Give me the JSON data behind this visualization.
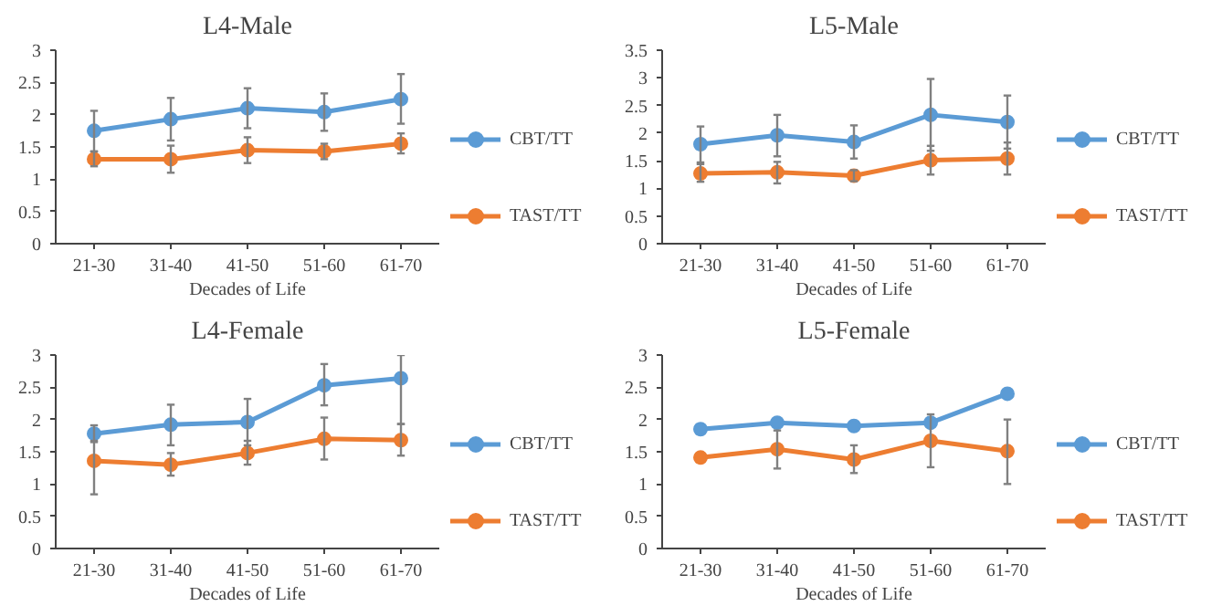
{
  "chart_data": [
    {
      "type": "line",
      "title": "L4-Male",
      "xlabel": "Decades of Life",
      "categories": [
        "21-30",
        "31-40",
        "41-50",
        "51-60",
        "61-70"
      ],
      "ylim": [
        0,
        3
      ],
      "yticks": [
        0,
        0.5,
        1,
        1.5,
        2,
        2.5,
        3
      ],
      "grid": false,
      "legend": "right",
      "marker": "circle",
      "series": [
        {
          "name": "CBT/TT",
          "color": "#5b9bd5",
          "values": [
            1.75,
            1.93,
            2.1,
            2.04,
            2.24
          ],
          "errors": [
            [
              1.43,
              2.06
            ],
            [
              1.6,
              2.26
            ],
            [
              1.79,
              2.41
            ],
            [
              1.75,
              2.33
            ],
            [
              1.86,
              2.63
            ]
          ]
        },
        {
          "name": "TAST/TT",
          "color": "#ed7d31",
          "values": [
            1.31,
            1.31,
            1.45,
            1.43,
            1.55
          ],
          "errors": [
            [
              1.2,
              1.43
            ],
            [
              1.1,
              1.52
            ],
            [
              1.25,
              1.65
            ],
            [
              1.31,
              1.55
            ],
            [
              1.4,
              1.71
            ]
          ]
        }
      ]
    },
    {
      "type": "line",
      "title": "L5-Male",
      "xlabel": "Decades of Life",
      "categories": [
        "21-30",
        "31-40",
        "41-50",
        "51-60",
        "61-70"
      ],
      "ylim": [
        0,
        3.5
      ],
      "yticks": [
        0,
        0.5,
        1,
        1.5,
        2,
        2.5,
        3,
        3.5
      ],
      "grid": false,
      "legend": "right",
      "marker": "circle",
      "series": [
        {
          "name": "CBT/TT",
          "color": "#5b9bd5",
          "values": [
            1.8,
            1.96,
            1.84,
            2.33,
            2.2
          ],
          "errors": [
            [
              1.47,
              2.12
            ],
            [
              1.58,
              2.33
            ],
            [
              1.54,
              2.14
            ],
            [
              1.68,
              2.98
            ],
            [
              1.72,
              2.68
            ]
          ]
        },
        {
          "name": "TAST/TT",
          "color": "#ed7d31",
          "values": [
            1.27,
            1.29,
            1.23,
            1.51,
            1.54
          ],
          "errors": [
            [
              1.12,
              1.44
            ],
            [
              1.09,
              1.48
            ],
            [
              1.13,
              1.33
            ],
            [
              1.25,
              1.77
            ],
            [
              1.25,
              1.83
            ]
          ]
        }
      ]
    },
    {
      "type": "line",
      "title": "L4-Female",
      "xlabel": "Decades of Life",
      "categories": [
        "21-30",
        "31-40",
        "41-50",
        "51-60",
        "61-70"
      ],
      "ylim": [
        0,
        3
      ],
      "yticks": [
        0,
        0.5,
        1,
        1.5,
        2,
        2.5,
        3
      ],
      "grid": false,
      "legend": "right",
      "marker": "circle",
      "series": [
        {
          "name": "CBT/TT",
          "color": "#5b9bd5",
          "values": [
            1.78,
            1.92,
            1.96,
            2.53,
            2.64
          ],
          "errors": [
            [
              1.65,
              1.91
            ],
            [
              1.6,
              2.23
            ],
            [
              1.6,
              2.32
            ],
            [
              2.22,
              2.86
            ],
            [
              1.93,
              3.0
            ]
          ]
        },
        {
          "name": "TAST/TT",
          "color": "#ed7d31",
          "values": [
            1.36,
            1.3,
            1.48,
            1.7,
            1.68
          ],
          "errors": [
            [
              0.84,
              1.67
            ],
            [
              1.13,
              1.48
            ],
            [
              1.3,
              1.67
            ],
            [
              1.38,
              2.03
            ],
            [
              1.44,
              1.93
            ]
          ]
        }
      ]
    },
    {
      "type": "line",
      "title": "L5-Female",
      "xlabel": "Decades of Life",
      "categories": [
        "21-30",
        "31-40",
        "41-50",
        "51-60",
        "61-70"
      ],
      "ylim": [
        0,
        3
      ],
      "yticks": [
        0,
        0.5,
        1,
        1.5,
        2,
        2.5,
        3
      ],
      "grid": false,
      "legend": "right",
      "marker": "circle",
      "series": [
        {
          "name": "CBT/TT",
          "color": "#5b9bd5",
          "values": [
            1.85,
            1.95,
            1.9,
            1.95,
            2.4
          ]
        },
        {
          "name": "TAST/TT",
          "color": "#ed7d31",
          "values": [
            1.41,
            1.54,
            1.38,
            1.67,
            1.51
          ],
          "errors": [
            null,
            [
              1.24,
              1.83
            ],
            [
              1.17,
              1.6
            ],
            [
              1.26,
              2.08
            ],
            [
              1.0,
              2.0
            ]
          ]
        }
      ]
    }
  ]
}
